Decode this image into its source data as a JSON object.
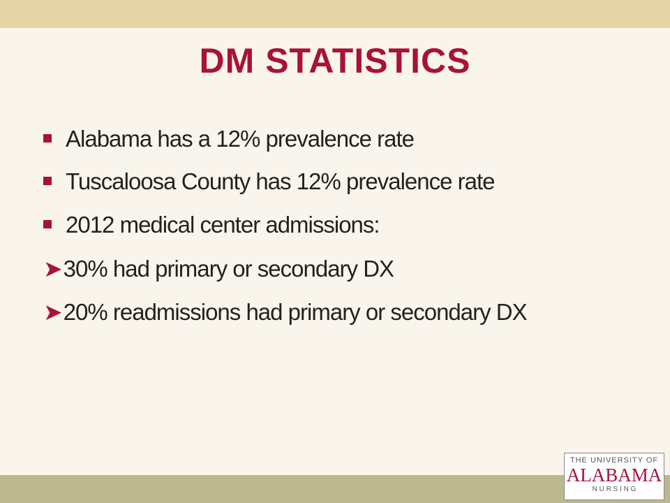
{
  "title": "DM STATISTICS",
  "bullets": [
    "Alabama has a 12% prevalence rate",
    "Tuscaloosa County has 12% prevalence rate",
    "2012 medical center admissions:"
  ],
  "sub_bullets": [
    "30% had primary or secondary DX",
    "20% readmissions had primary or secondary DX"
  ],
  "logo": {
    "line1": "THE UNIVERSITY OF",
    "line2": "ALABAMA",
    "line3": "N U R S I N G"
  }
}
